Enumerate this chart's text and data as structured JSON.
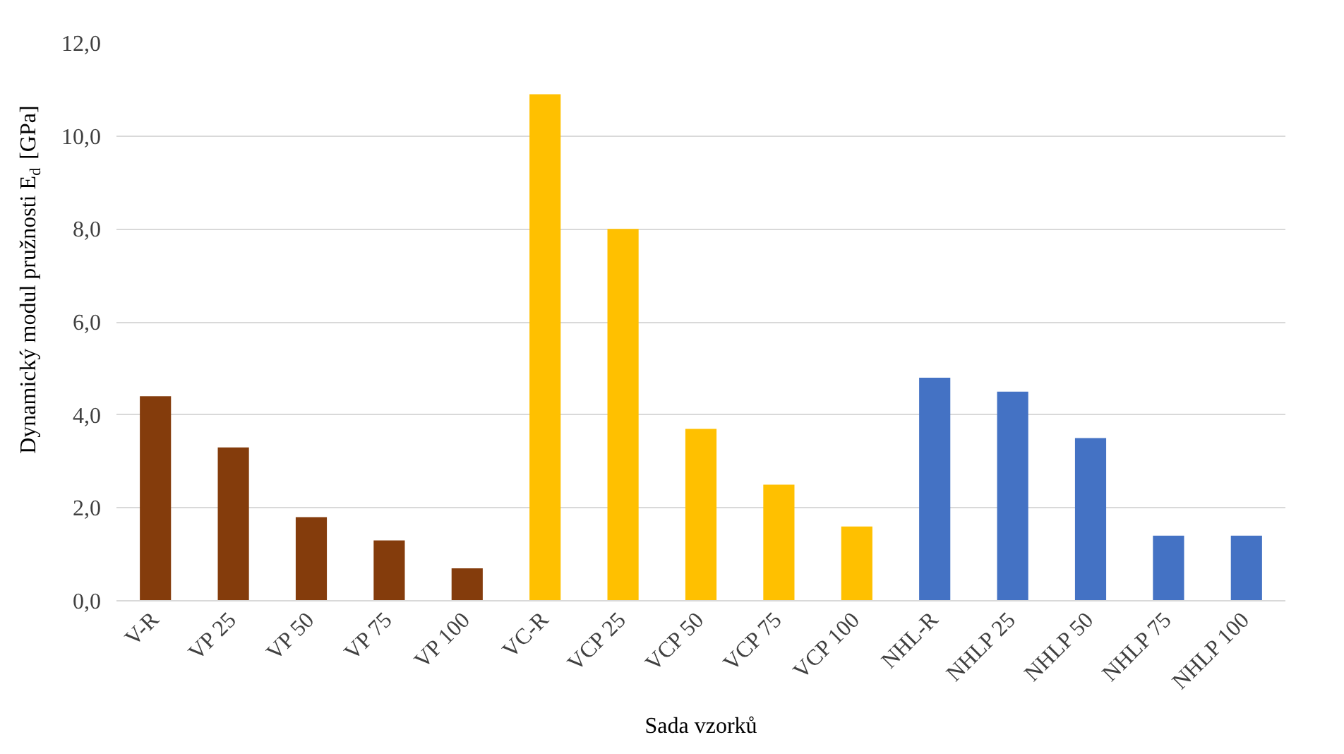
{
  "chart_data": {
    "type": "bar",
    "xlabel": "Sada vzorků",
    "ylabel": "Dynamický modul pružnosti E$_{d}$ [GPa]",
    "categories": [
      "V-R",
      "VP 25",
      "VP 50",
      "VP 75",
      "VP 100",
      "VC-R",
      "VCP 25",
      "VCP 50",
      "VCP 75",
      "VCP 100",
      "NHL-R",
      "NHLP 25",
      "NHLP 50",
      "NHLP 75",
      "NHLP 100"
    ],
    "values": [
      4.4,
      3.3,
      1.8,
      1.3,
      0.7,
      10.9,
      8.0,
      3.7,
      2.5,
      1.6,
      4.8,
      4.5,
      3.5,
      1.4,
      1.4
    ],
    "colors": [
      "#843c0c",
      "#843c0c",
      "#843c0c",
      "#843c0c",
      "#843c0c",
      "#ffc000",
      "#ffc000",
      "#ffc000",
      "#ffc000",
      "#ffc000",
      "#4472c4",
      "#4472c4",
      "#4472c4",
      "#4472c4",
      "#4472c4"
    ],
    "ylim": [
      0,
      12
    ],
    "yticks": [
      {
        "value": 0,
        "label": "0,0"
      },
      {
        "value": 2,
        "label": "2,0"
      },
      {
        "value": 4,
        "label": "4,0"
      },
      {
        "value": 6,
        "label": "6,0"
      },
      {
        "value": 8,
        "label": "8,0"
      },
      {
        "value": 10,
        "label": "10,0"
      },
      {
        "value": 12,
        "label": "12,0"
      }
    ],
    "grid": "y"
  }
}
